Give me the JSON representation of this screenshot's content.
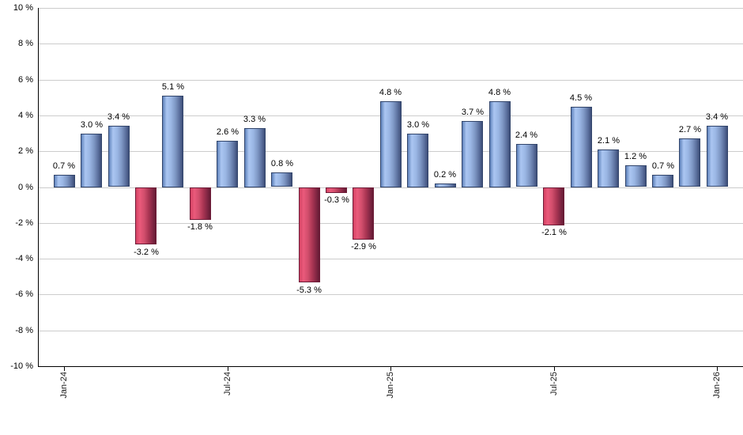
{
  "chart_data": {
    "type": "bar",
    "title": "",
    "xlabel": "",
    "ylabel": "",
    "unit": "%",
    "ylim": [
      -10,
      10
    ],
    "y_tick_step": 2,
    "grid": true,
    "y_tick_labels": [
      "10 %",
      "8 %",
      "6 %",
      "4 %",
      "2 %",
      "0 %",
      "-2 %",
      "-4 %",
      "-6 %",
      "-8 %",
      "-10 %"
    ],
    "y_tick_values": [
      10,
      8,
      6,
      4,
      2,
      0,
      -2,
      -4,
      -6,
      -8,
      -10
    ],
    "x_tick_labels": [
      "Jan-24",
      "Jul-24",
      "Jan-25",
      "Jul-25",
      "Jan-26"
    ],
    "x_tick_indices": [
      0,
      6,
      12,
      18,
      24
    ],
    "values": [
      0.7,
      3.0,
      3.4,
      -3.2,
      5.1,
      -1.8,
      2.6,
      3.3,
      0.8,
      -5.3,
      -0.3,
      -2.9,
      4.8,
      3.0,
      0.2,
      3.7,
      4.8,
      2.4,
      -2.1,
      4.5,
      2.1,
      1.2,
      0.7,
      2.7,
      3.4
    ],
    "bar_labels": [
      "0.7 %",
      "3.0 %",
      "3.4 %",
      "-3.2 %",
      "5.1 %",
      "-1.8 %",
      "2.6 %",
      "3.3 %",
      "0.8 %",
      "-5.3 %",
      "-0.3 %",
      "-2.9 %",
      "4.8 %",
      "3.0 %",
      "0.2 %",
      "3.7 %",
      "4.8 %",
      "2.4 %",
      "-2.1 %",
      "4.5 %",
      "2.1 %",
      "1.2 %",
      "0.7 %",
      "2.7 %",
      "3.4 %"
    ],
    "colors": {
      "grid": "#cccccc",
      "axis": "#000000",
      "text": "#000000",
      "positive_gradient": [
        "#5f82ba",
        "#abc6f2",
        "#9ab6e4",
        "#7e97c4",
        "#5a6e9c",
        "#3d4e78"
      ],
      "positive_border": "#32456b",
      "negative_gradient": [
        "#d44263",
        "#ea5a7b",
        "#d14e6c",
        "#ab3654",
        "#812643",
        "#641b34"
      ],
      "negative_border": "#6e1c38"
    }
  }
}
